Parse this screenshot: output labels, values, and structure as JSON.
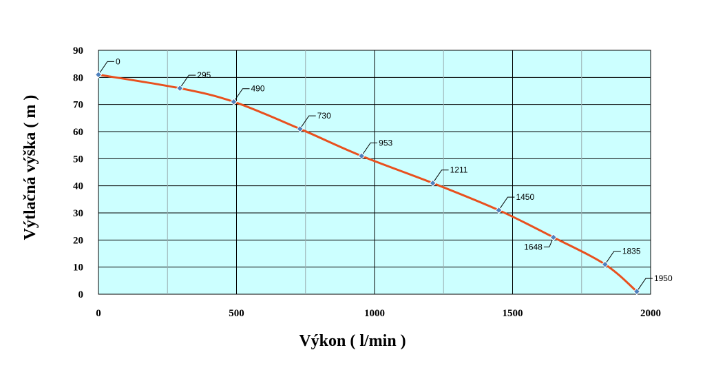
{
  "chart_data": {
    "type": "line",
    "title": "",
    "xlabel": "Výkon ( l/min )",
    "ylabel": "Výtlačná výška ( m )",
    "xlim": [
      0,
      2000
    ],
    "ylim": [
      0,
      90
    ],
    "x_ticks": [
      "0",
      "500",
      "1000",
      "1500",
      "2000"
    ],
    "y_ticks": [
      "0",
      "10",
      "20",
      "30",
      "40",
      "50",
      "60",
      "70",
      "80",
      "90"
    ],
    "grid": true,
    "legend": "none",
    "plot_background": "#ccffff",
    "line_color": "#e8501e",
    "marker_color": "#4f81bd",
    "series": [
      {
        "x": [
          0,
          295,
          490,
          730,
          953,
          1211,
          1450,
          1648,
          1835,
          1950
        ],
        "y": [
          81,
          76,
          71,
          61,
          51,
          41,
          31,
          21,
          11,
          1
        ],
        "labels": [
          "0",
          "295",
          "490",
          "730",
          "953",
          "1211",
          "1450",
          "1648",
          "1835",
          "1950"
        ]
      }
    ]
  }
}
